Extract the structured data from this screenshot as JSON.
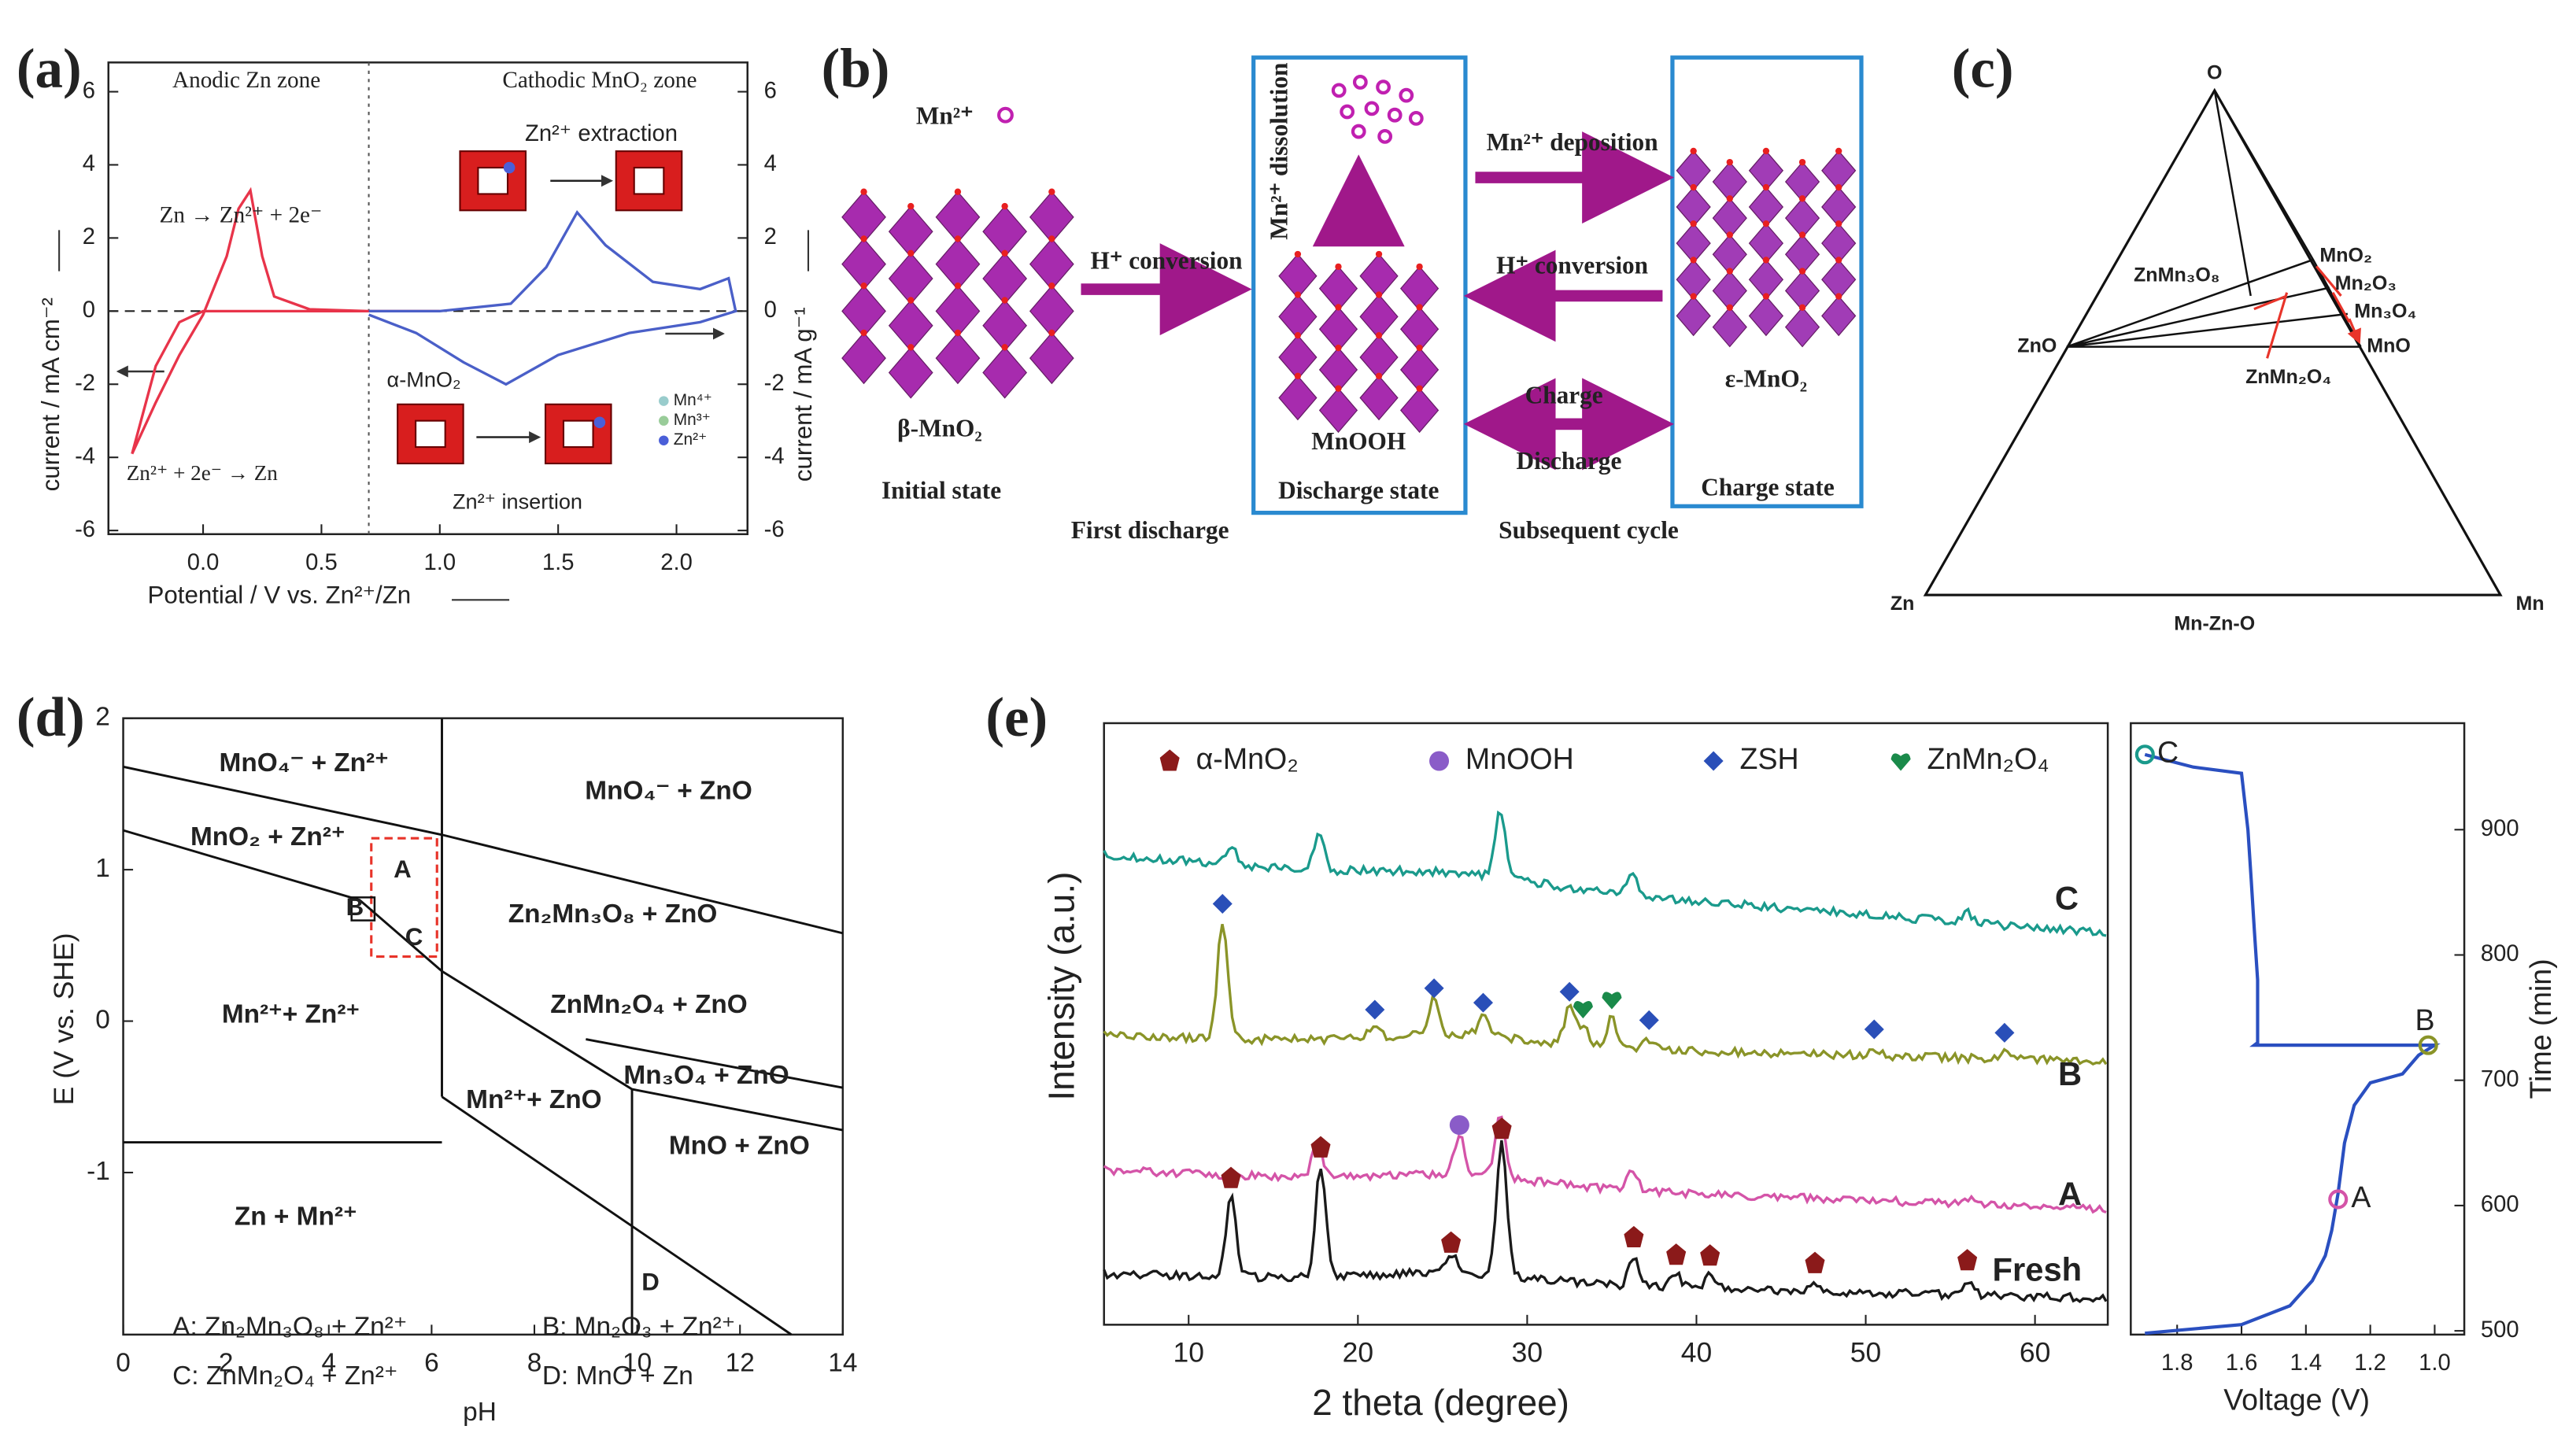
{
  "a": {
    "label": "(a)",
    "zone_left": "Anodic Zn zone",
    "zone_right": "Cathodic MnO₂ zone",
    "reaction_ox": "Zn → Zn²⁺ + 2e⁻",
    "reaction_red": "Zn²⁺ + 2e⁻ → Zn",
    "extraction": "Zn²⁺ extraction",
    "insertion": "Zn²⁺ insertion",
    "alpha": "α-MnO₂",
    "ion_legend": [
      "Mn⁴⁺",
      "Mn³⁺",
      "Zn²⁺"
    ],
    "xlabel": "Potential / V vs. Zn²⁺/Zn",
    "ylabel": "current / mA cm⁻²",
    "y2label": "current / mA g⁻¹",
    "xlim": [
      -0.4,
      2.3
    ],
    "xticks": [
      {
        "value": 0,
        "label": "0.0"
      },
      {
        "value": 0.5,
        "label": "0.5"
      },
      {
        "value": 1,
        "label": "1.0"
      },
      {
        "value": 1.5,
        "label": "1.5"
      },
      {
        "value": 2,
        "label": "2.0"
      }
    ],
    "ylim": [
      -6.1,
      6.8
    ],
    "yticks": [
      -6,
      -4,
      -2,
      0,
      2,
      4,
      6
    ],
    "y2lim": [
      -6.1,
      6.8
    ],
    "y2ticks": [
      -6,
      -4,
      -2,
      0,
      2,
      4,
      6
    ],
    "series": [
      {
        "color": "#e8344a",
        "x": [
          -0.3,
          -0.2,
          -0.1,
          0.0,
          0.1,
          0.15,
          0.2,
          0.25,
          0.3,
          0.45,
          0.7,
          1.0,
          0.5,
          0.0,
          -0.1,
          -0.2,
          -0.3
        ],
        "values": [
          -3.9,
          -2.5,
          -1.2,
          -0.1,
          1.5,
          2.8,
          3.3,
          1.5,
          0.4,
          0.05,
          0,
          0,
          0,
          0,
          -0.3,
          -1.5,
          -3.9
        ]
      },
      {
        "color": "#4a5fc8",
        "axis": "y2",
        "x": [
          0.7,
          1.0,
          1.3,
          1.45,
          1.58,
          1.7,
          1.9,
          2.1,
          2.22,
          2.25,
          2.1,
          1.8,
          1.5,
          1.28,
          1.1,
          0.9,
          0.7
        ],
        "values": [
          0,
          0,
          0.2,
          1.2,
          2.7,
          1.8,
          0.8,
          0.6,
          0.9,
          0,
          -0.3,
          -0.6,
          -1.2,
          -2.0,
          -1.4,
          -0.6,
          -0.1
        ]
      }
    ]
  },
  "b": {
    "label": "(b)",
    "mn_ion": "Mn²⁺",
    "beta": "β-MnO₂",
    "initial": "Initial state",
    "first_discharge": "First discharge",
    "h_conv_1": "H⁺ conversion",
    "dissolution": "Mn²⁺ dissolution",
    "mnooh": "MnOOH",
    "discharge_state": "Discharge state",
    "deposition": "Mn²⁺ deposition",
    "h_conv_2": "H⁺ conversion",
    "charge": "Charge",
    "discharge": "Discharge",
    "subsequent": "Subsequent cycle",
    "epsilon": "ε-MnO₂",
    "charge_state": "Charge state"
  },
  "c": {
    "label": "(c)",
    "o": "O",
    "zn": "Zn",
    "mn": "Mn",
    "system": "Mn-Zn-O",
    "zno": "ZnO",
    "mno": "MnO",
    "mno2": "MnO₂",
    "mn2o3": "Mn₂O₃",
    "mn3o4": "Mn₃O₄",
    "znmn3o8": "ZnMn₃O₈",
    "znmn2o4": "ZnMn₂O₄"
  },
  "d": {
    "label": "(d)",
    "xlabel": "pH",
    "ylabel": "E (V vs. SHE)",
    "xlim": [
      0,
      14
    ],
    "xticks": [
      0,
      2,
      4,
      6,
      8,
      10,
      12,
      14
    ],
    "ylim": [
      -2.07,
      2
    ],
    "yticks": [
      -1,
      0,
      1,
      2
    ],
    "regions": [
      "MnO₄⁻ + Zn²⁺",
      "MnO₄⁻ + ZnO",
      "MnO₂ + Zn²⁺",
      "Zn₂Mn₃O₈ + ZnO",
      "ZnMn₂O₄ + ZnO",
      "Mn²⁺+ Zn²⁺",
      "Mn₃O₄ + ZnO",
      "Mn²⁺+ ZnO",
      "MnO + ZnO",
      "Zn + Mn²⁺"
    ],
    "points": [
      "A",
      "B",
      "C",
      "D"
    ],
    "key": [
      "A: Zn₂Mn₃O₈ + Zn²⁺",
      "B: Mn₂O₃ + Zn²⁺",
      "C: ZnMn₂O₄ + Zn²⁺",
      "D: MnO + Zn"
    ],
    "boundaries": [
      {
        "x": [
          0,
          6.2,
          14
        ],
        "values": [
          1.68,
          1.23,
          0.58
        ]
      },
      {
        "x": [
          0,
          4.6,
          6.2
        ],
        "values": [
          1.26,
          0.8,
          0.33
        ]
      },
      {
        "x": [
          6.2,
          9.9
        ],
        "values": [
          0.33,
          -0.45
        ]
      },
      {
        "x": [
          9.0,
          14
        ],
        "values": [
          -0.12,
          -0.44
        ]
      },
      {
        "x": [
          9.9,
          14
        ],
        "values": [
          -0.45,
          -0.72
        ]
      },
      {
        "x": [
          6.2,
          6.2
        ],
        "values": [
          2,
          -0.5
        ]
      },
      {
        "x": [
          9.9,
          9.9
        ],
        "values": [
          -0.45,
          -2.07
        ]
      },
      {
        "x": [
          0,
          6.2
        ],
        "values": [
          -0.8,
          -0.8
        ]
      },
      {
        "x": [
          6.2,
          13
        ],
        "values": [
          -0.5,
          -2.07
        ]
      }
    ]
  },
  "e": {
    "label": "(e)",
    "xlabel": "2 theta (degree)",
    "ylabel": "Intensity (a.u.)",
    "xlim": [
      5,
      64.3
    ],
    "xticks": [
      10,
      20,
      30,
      40,
      50,
      60
    ],
    "legend": [
      {
        "name": "α-MnO₂",
        "color": "#8b1a1a"
      },
      {
        "name": "MnOOH",
        "color": "#8a5cc8"
      },
      {
        "name": "ZSH",
        "color": "#2a4fb8"
      },
      {
        "name": "ZnMn₂O₄",
        "color": "#1a8a4a"
      }
    ],
    "patterns": [
      {
        "name": "C",
        "color": "#1a9a8c",
        "x": [
          12.5,
          17.7,
          28.4,
          36.2,
          56
        ],
        "values": [
          12,
          22,
          40,
          12,
          6
        ],
        "phases": [
          null,
          null,
          null,
          null,
          null
        ]
      },
      {
        "name": "B",
        "color": "#8a9428",
        "x": [
          12,
          21,
          24.5,
          27.4,
          32.5,
          33.3,
          35,
          37.2,
          50.5,
          58.2
        ],
        "values": [
          70,
          8,
          22,
          14,
          22,
          12,
          18,
          6,
          4,
          4
        ],
        "phases": [
          "ZSH",
          "ZSH",
          "ZSH",
          "ZSH",
          "ZSH",
          "ZnMn₂O₄",
          "ZnMn₂O₄",
          "ZSH",
          "ZSH",
          "ZSH"
        ]
      },
      {
        "name": "A",
        "color": "#d454a8",
        "x": [
          17.6,
          26,
          28.4,
          36.2,
          56
        ],
        "values": [
          20,
          24,
          40,
          12,
          4
        ],
        "phases": [
          null,
          "MnOOH",
          null,
          null,
          null
        ]
      },
      {
        "name": "Fresh",
        "color": "#1a1a1a",
        "x": [
          12.5,
          17.8,
          25.5,
          28.5,
          36.3,
          38.8,
          40.8,
          47,
          56
        ],
        "values": [
          48,
          68,
          12,
          82,
          18,
          8,
          8,
          5,
          9
        ],
        "phases": [
          "α-MnO₂",
          "α-MnO₂",
          "α-MnO₂",
          "α-MnO₂",
          "α-MnO₂",
          "α-MnO₂",
          "α-MnO₂",
          "α-MnO₂",
          "α-MnO₂"
        ]
      }
    ],
    "vt": {
      "xlabel": "Voltage (V)",
      "ylabel": "Time (min)",
      "xlim": [
        1.944,
        0.908
      ],
      "xticks": [
        1.8,
        1.6,
        1.4,
        1.2,
        {
          "value": 1,
          "label": "1.0"
        }
      ],
      "ylim": [
        497,
        985
      ],
      "yticks": [
        500,
        600,
        700,
        800,
        900
      ],
      "color": "#2a4fc0",
      "x": [
        1.9,
        1.75,
        1.6,
        1.58,
        1.57,
        1.56,
        1.55,
        1.55,
        1.56,
        1.0,
        1.05,
        1.1,
        1.2,
        1.25,
        1.28,
        1.3,
        1.32,
        1.34,
        1.38,
        1.45,
        1.6,
        1.9
      ],
      "values": [
        960,
        950,
        945,
        900,
        860,
        820,
        780,
        730,
        728,
        728,
        720,
        705,
        698,
        680,
        650,
        610,
        580,
        560,
        540,
        520,
        505,
        498
      ],
      "states": [
        {
          "name": "C",
          "x": 1.9,
          "value": 960,
          "color": "#1a9a8c"
        },
        {
          "name": "B",
          "x": 1.02,
          "value": 728,
          "color": "#8a9428"
        },
        {
          "name": "A",
          "x": 1.3,
          "value": 605,
          "color": "#d454a8"
        }
      ]
    }
  }
}
